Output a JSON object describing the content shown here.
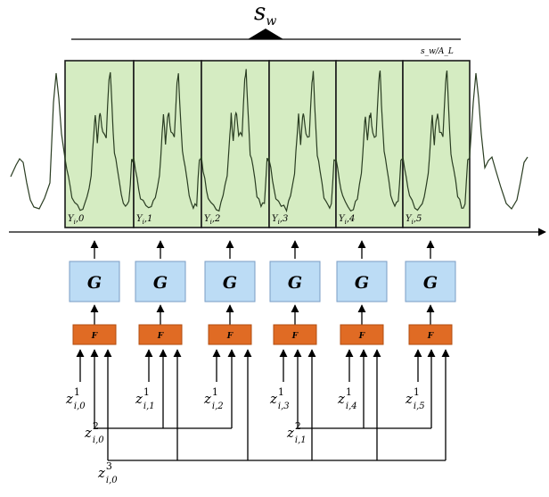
{
  "window_width": {
    "symbol": "s",
    "subscript": "w"
  },
  "scale_ratio": "s_w/A_L",
  "generator_label": "G",
  "mapping_label": "F",
  "output_labels": [
    "Y_i,0",
    "Y_i,1",
    "Y_i,2",
    "Y_i,3",
    "Y_i,4",
    "Y_i,5"
  ],
  "latent_level1": [
    "z^1_{i,0}",
    "z^1_{i,1}",
    "z^1_{i,2}",
    "z^1_{i,3}",
    "z^1_{i,4}",
    "z^1_{i,5}"
  ],
  "latent_level2": [
    "z^2_{i,0}",
    "z^2_{i,1}"
  ],
  "latent_level3": [
    "z^3_{i,0}"
  ],
  "colors": {
    "window_fill": "#d5ecc2",
    "generator_fill": "#bcdcf5",
    "mapping_fill": "#e06b24",
    "signal": "#2a3d22"
  }
}
